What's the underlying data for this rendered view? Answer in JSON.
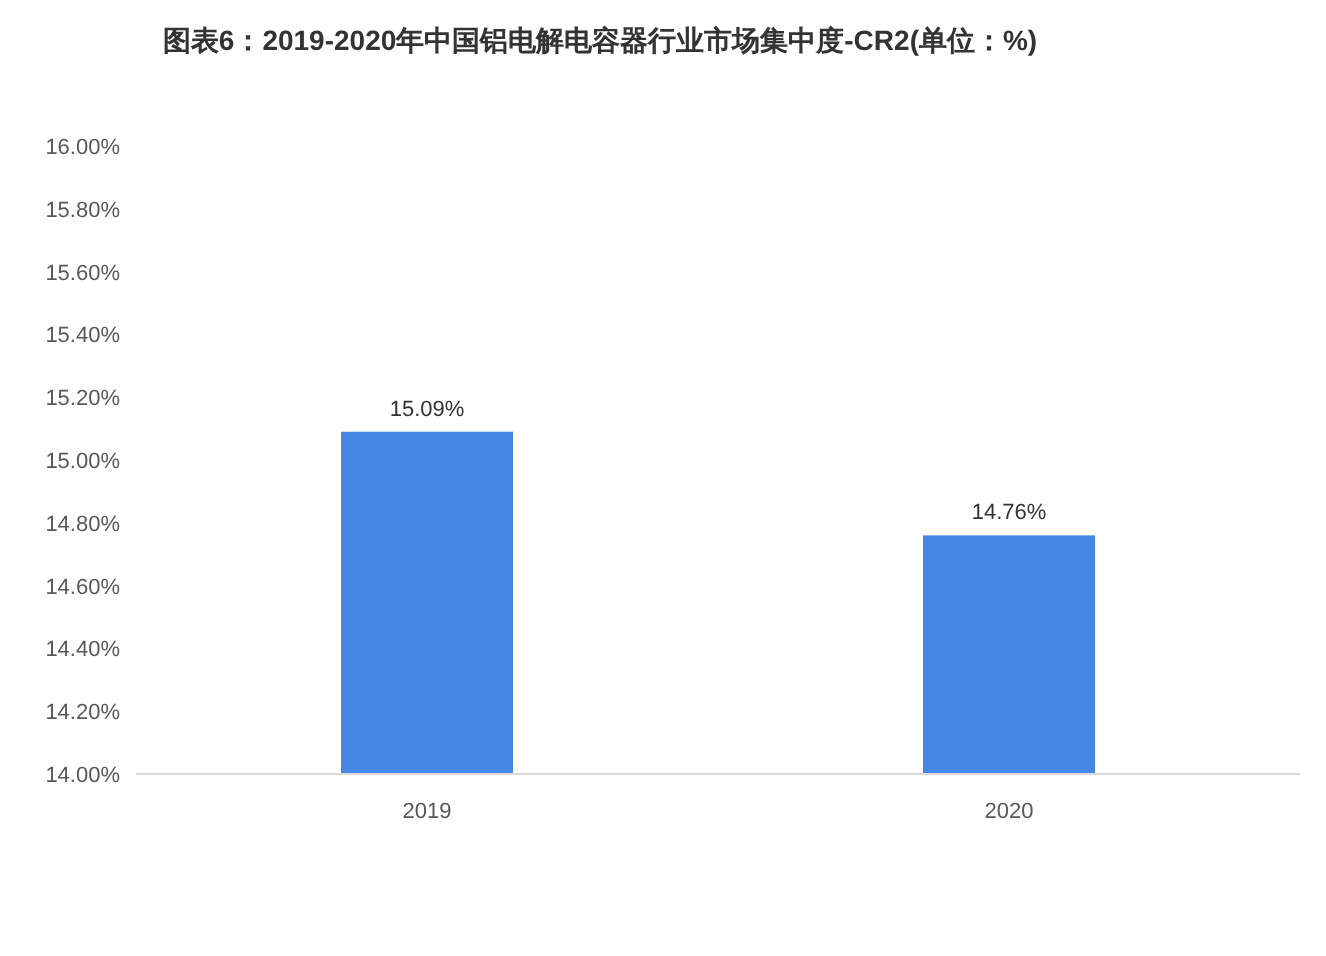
{
  "chart_data": {
    "type": "bar",
    "title": "图表6：2019-2020年中国铝电解电容器行业市场集中度-CR2(单位：%)",
    "categories": [
      "2019",
      "2020"
    ],
    "series": [
      {
        "color": "#4587e4",
        "values": [
          15.09,
          14.76
        ],
        "value_labels": [
          "15.09%",
          "14.76%"
        ]
      }
    ],
    "ylim": [
      14,
      16
    ],
    "yticks": [
      {
        "value": 14,
        "label": "14.00%"
      },
      {
        "value": 14.2,
        "label": "14.20%"
      },
      {
        "value": 14.4,
        "label": "14.40%"
      },
      {
        "value": 14.6,
        "label": "14.60%"
      },
      {
        "value": 14.8,
        "label": "14.80%"
      },
      {
        "value": 15,
        "label": "15.00%"
      },
      {
        "value": 15.2,
        "label": "15.20%"
      },
      {
        "value": 15.4,
        "label": "15.40%"
      },
      {
        "value": 15.6,
        "label": "15.60%"
      },
      {
        "value": 15.8,
        "label": "15.80%"
      },
      {
        "value": 16,
        "label": "16.00%"
      }
    ],
    "grid": false
  }
}
